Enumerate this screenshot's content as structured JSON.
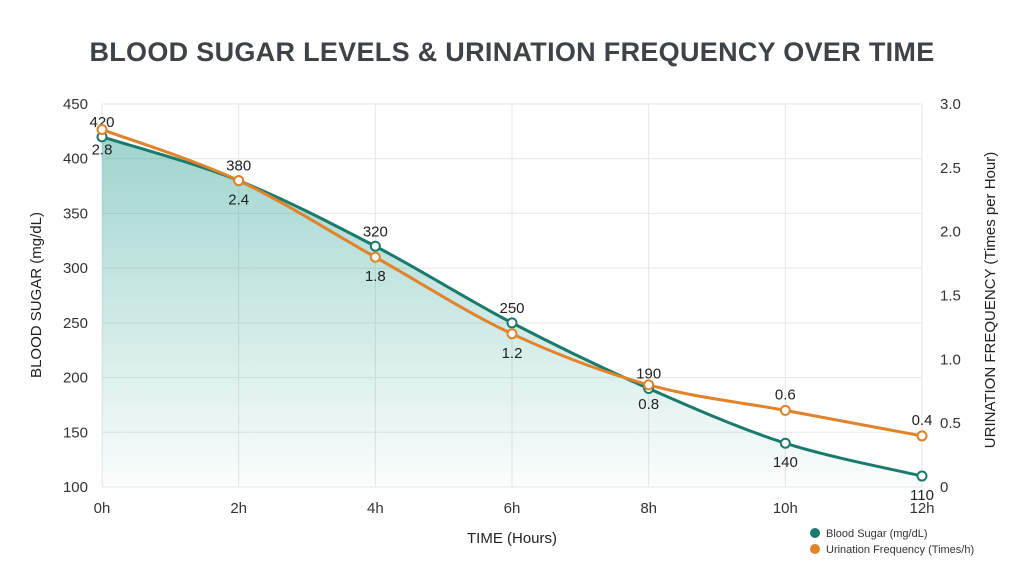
{
  "chart_data": {
    "type": "line",
    "title": "BLOOD SUGAR LEVELS & URINATION FREQUENCY OVER TIME",
    "xlabel": "TIME (Hours)",
    "ylabel": "BLOOD SUGAR (mg/dL)",
    "y2label": "URINATION FREQUENCY (Times per Hour)",
    "categories": [
      "0h",
      "2h",
      "4h",
      "6h",
      "8h",
      "10h",
      "12h"
    ],
    "ylim": [
      100,
      450
    ],
    "yticks": [
      100,
      150,
      200,
      250,
      300,
      350,
      400,
      450
    ],
    "y2lim": [
      0,
      3.0
    ],
    "y2ticks": [
      "0",
      "0.5",
      "1.0",
      "1.5",
      "2.0",
      "2.5",
      "3.0"
    ],
    "grid": true,
    "legend_position": "bottom-right",
    "series": [
      {
        "name": "Blood Sugar (mg/dL)",
        "axis": "left",
        "color": "#1a7a6c",
        "values": [
          420,
          380,
          320,
          250,
          190,
          140,
          110
        ],
        "labels": [
          "420",
          "380",
          "320",
          "250",
          "190",
          "140",
          "110"
        ],
        "area_fill": true
      },
      {
        "name": "Urination Frequency (Times/h)",
        "axis": "right",
        "color": "#e0832a",
        "values": [
          2.8,
          2.4,
          1.8,
          1.2,
          0.8,
          0.6,
          0.4
        ],
        "labels": [
          "2.8",
          "2.4",
          "1.8",
          "1.2",
          "0.8",
          "0.6",
          "0.4"
        ]
      }
    ]
  }
}
